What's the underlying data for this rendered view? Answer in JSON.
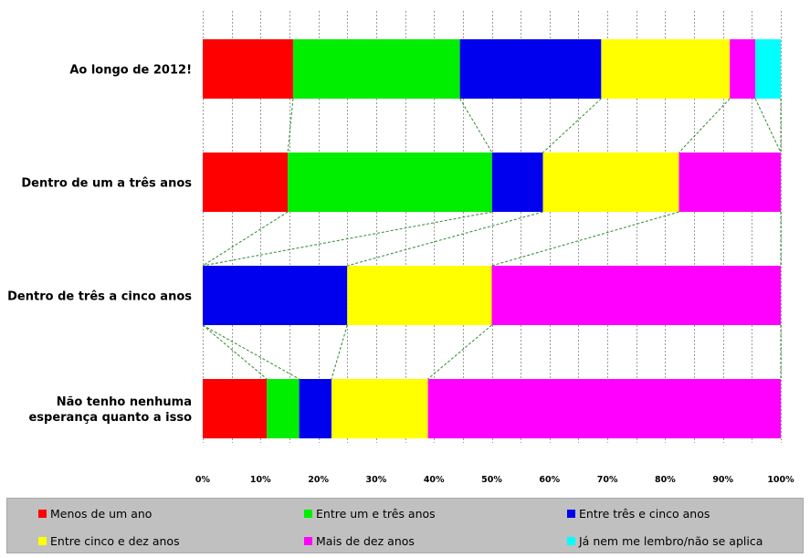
{
  "chart_data": {
    "type": "bar",
    "orientation": "horizontal",
    "stacked": "percent",
    "categories": [
      "Ao longo de 2012!",
      "Dentro de um a três anos",
      "Dentro de três a cinco anos",
      "Não tenho nenhuma esperança quanto a isso"
    ],
    "category_lines": [
      [
        "Ao longo de 2012!"
      ],
      [
        "Dentro de um a três anos"
      ],
      [
        "Dentro de três a cinco anos"
      ],
      [
        "Não tenho nenhuma",
        "esperança quanto a isso"
      ]
    ],
    "series": [
      {
        "name": "Menos de um ano",
        "color": "#ff0000",
        "values": [
          15.6,
          14.7,
          0,
          11.1
        ]
      },
      {
        "name": "Entre um e três anos",
        "color": "#00ee00",
        "values": [
          28.8,
          35.3,
          0,
          5.6
        ]
      },
      {
        "name": "Entre três e cinco anos",
        "color": "#0000ee",
        "values": [
          24.4,
          8.8,
          25.0,
          5.6
        ]
      },
      {
        "name": "Entre cinco e dez anos",
        "color": "#ffff00",
        "values": [
          22.2,
          23.5,
          25.0,
          16.7
        ]
      },
      {
        "name": "Mais de dez anos",
        "color": "#ff00ff",
        "values": [
          4.4,
          17.6,
          50.0,
          61.1
        ]
      },
      {
        "name": "Já nem me lembro/não se aplica",
        "color": "#00ffff",
        "values": [
          4.4,
          0,
          0,
          0
        ]
      }
    ],
    "xlim": [
      0,
      100
    ],
    "xticks": [
      "0%",
      "10%",
      "20%",
      "30%",
      "40%",
      "50%",
      "60%",
      "70%",
      "80%",
      "90%",
      "100%"
    ],
    "grid": "vertical dashed",
    "series_lines": "dashed green connectors between bars",
    "legend_position": "bottom"
  }
}
